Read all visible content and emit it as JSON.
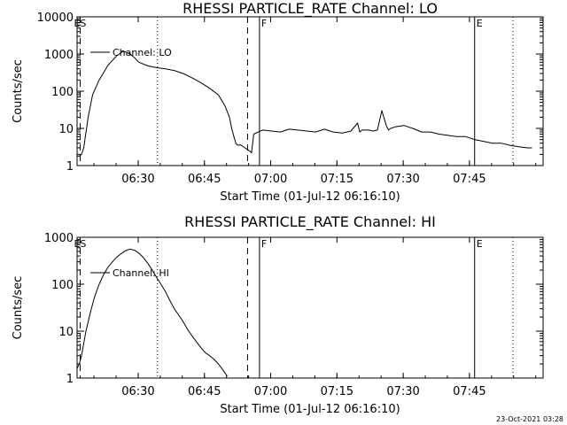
{
  "chart_data": [
    {
      "type": "line",
      "title": "RHESSI PARTICLE_RATE Channel: LO",
      "xlabel": "Start Time (01-Jul-12 06:16:10)",
      "ylabel": "Counts/sec",
      "yscale": "log",
      "ylim": [
        1,
        10000
      ],
      "xlim_minutes": [
        0,
        105.5
      ],
      "x_ticks": [
        "06:30",
        "06:45",
        "07:00",
        "07:15",
        "07:30",
        "07:45"
      ],
      "y_ticks": [
        "1",
        "10",
        "100",
        "1000",
        "10000"
      ],
      "legend": {
        "label": "Channel: LO",
        "placement": "top-left"
      },
      "markers": {
        "solid": [
          {
            "x": 41.3,
            "label": "F"
          },
          {
            "x": 90.0,
            "label": "E"
          }
        ],
        "dashed": [
          {
            "x": 0.7,
            "label": "ES"
          },
          {
            "x": 38.6,
            "label": ""
          }
        ],
        "dotted": [
          18.2,
          98.7
        ]
      },
      "series": [
        {
          "x": [
            0.0,
            0.5,
            1.0,
            1.5,
            2.5,
            3.5,
            5.0,
            7.0,
            9.0,
            10.5,
            12.0,
            13.0,
            14.0,
            16.0,
            18.0,
            20.0,
            22.0,
            24.0,
            26.0,
            28.0,
            30.0,
            32.0,
            33.5,
            34.5,
            35.0,
            35.5,
            36.0,
            36.5,
            37.0,
            38.0,
            39.0,
            39.5,
            40.0,
            41.0,
            42.0,
            44.0,
            46.0,
            48.0,
            50.0,
            52.0,
            54.0,
            56.0,
            58.0,
            60.0,
            62.0,
            63.5,
            64.0,
            64.5,
            66.0,
            67.0,
            68.0,
            69.0,
            70.0,
            70.5,
            71.0,
            72.0,
            74.0,
            76.0,
            78.0,
            80.0,
            82.0,
            84.0,
            86.0,
            88.0,
            90.0,
            92.0,
            94.0,
            96.0,
            98.0,
            100.0,
            102.0,
            103.0
          ],
          "y": [
            1.8,
            1.8,
            2.0,
            3.0,
            20,
            80,
            200,
            500,
            900,
            1200,
            1000,
            800,
            600,
            480,
            430,
            400,
            360,
            300,
            230,
            170,
            120,
            80,
            40,
            20,
            10,
            6,
            3.8,
            3.5,
            3.6,
            3.0,
            2.5,
            2.2,
            7,
            8,
            9,
            8.5,
            8,
            9.5,
            9,
            8.5,
            8,
            9.5,
            8,
            7.5,
            8.5,
            14,
            8,
            9,
            9,
            8.5,
            9,
            30,
            12,
            9,
            10,
            11,
            12,
            10,
            8,
            8,
            7,
            6.5,
            6,
            6,
            5,
            4.5,
            4,
            4,
            3.5,
            3.2,
            3,
            3
          ]
        }
      ]
    },
    {
      "type": "line",
      "title": "RHESSI PARTICLE_RATE Channel: HI",
      "xlabel": "Start Time (01-Jul-12 06:16:10)",
      "ylabel": "Counts/sec",
      "yscale": "log",
      "ylim": [
        1,
        1000
      ],
      "xlim_minutes": [
        0,
        105.5
      ],
      "x_ticks": [
        "06:30",
        "06:45",
        "07:00",
        "07:15",
        "07:30",
        "07:45"
      ],
      "y_ticks": [
        "1",
        "10",
        "100",
        "1000"
      ],
      "legend": {
        "label": "Channel: HI",
        "placement": "top-left"
      },
      "markers": {
        "solid": [
          {
            "x": 41.3,
            "label": "F"
          },
          {
            "x": 90.0,
            "label": "E"
          }
        ],
        "dashed": [
          {
            "x": 0.7,
            "label": "ES"
          },
          {
            "x": 38.6,
            "label": ""
          }
        ],
        "dotted": [
          18.2,
          98.7
        ]
      },
      "series": [
        {
          "x": [
            0.0,
            0.5,
            1.0,
            2.0,
            3.0,
            4.0,
            5.0,
            6.0,
            7.0,
            8.0,
            9.0,
            10.0,
            11.0,
            12.0,
            13.0,
            14.0,
            15.0,
            16.0,
            17.0,
            18.0,
            19.0,
            20.0,
            21.0,
            22.0,
            23.0,
            24.0,
            25.0,
            26.0,
            27.0,
            28.0,
            29.0,
            30.0,
            31.0,
            32.0,
            33.0,
            34.0
          ],
          "y": [
            1.6,
            2,
            3,
            10,
            25,
            55,
            100,
            160,
            230,
            300,
            380,
            450,
            520,
            560,
            530,
            460,
            370,
            280,
            200,
            140,
            100,
            70,
            45,
            30,
            22,
            16,
            11,
            8,
            6,
            4.5,
            3.5,
            3,
            2.5,
            2,
            1.5,
            1.1
          ]
        }
      ]
    }
  ],
  "footer": {
    "timestamp": "23-Oct-2021 03:28"
  }
}
